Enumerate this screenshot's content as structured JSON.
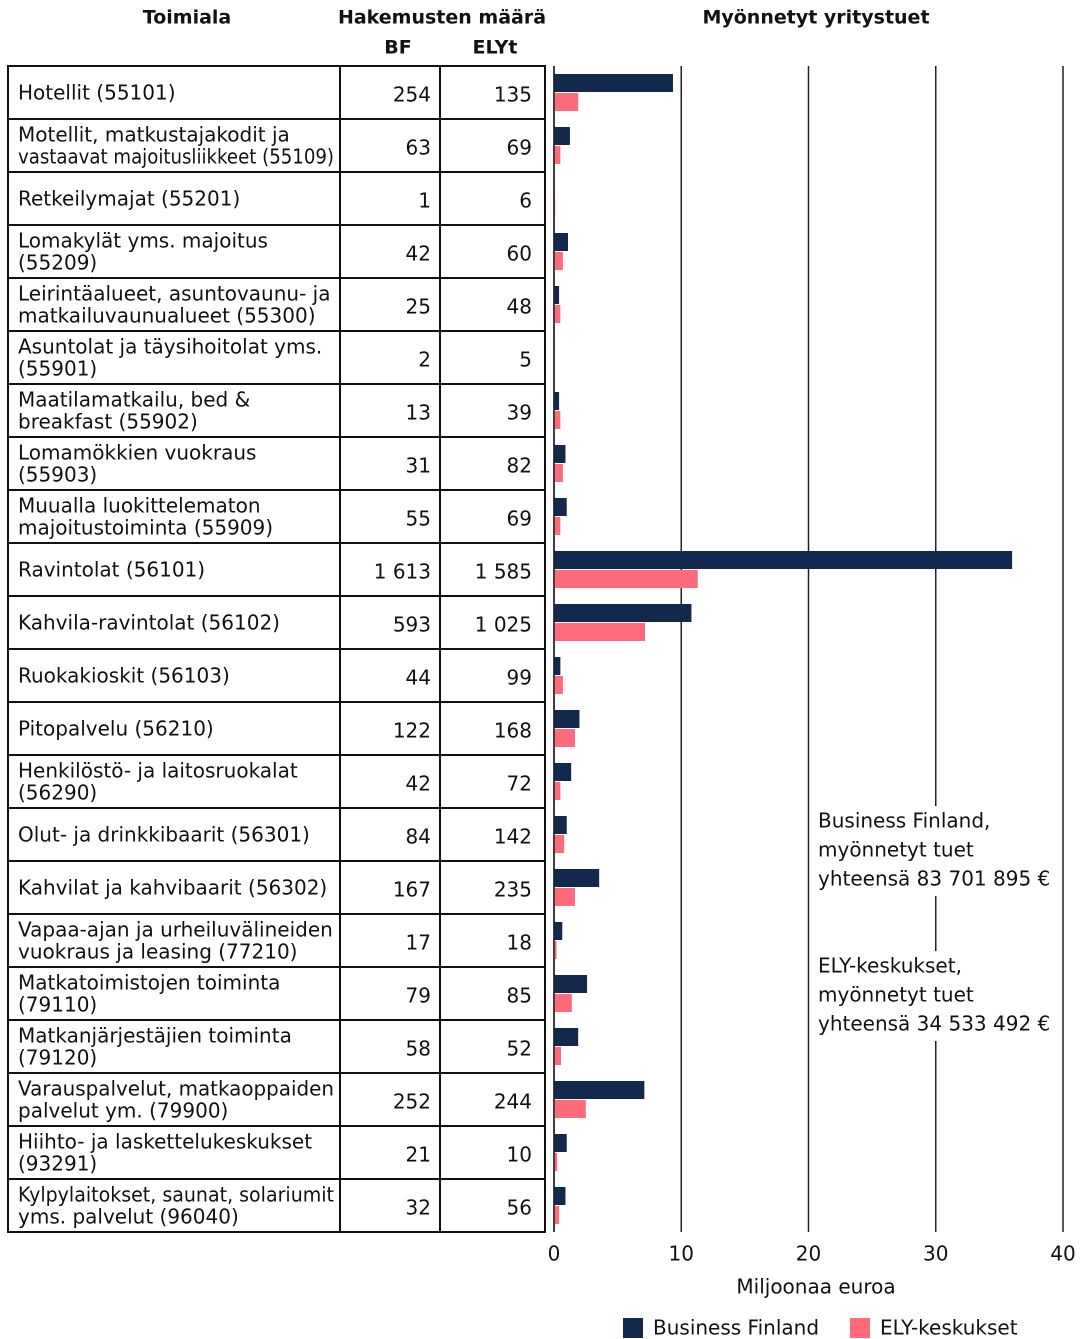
{
  "table": {
    "headers": {
      "toimiala": "Toimiala",
      "count": "Hakemusten määrä",
      "bf": "BF",
      "ely": "ELYt"
    },
    "rows": [
      {
        "name": [
          "Hotellit (55101)"
        ],
        "bf": "254",
        "ely": "135"
      },
      {
        "name": [
          "Motellit, matkustajakodit ja",
          "vastaavat majoitusliikkeet (55109)"
        ],
        "bf": "63",
        "ely": "69"
      },
      {
        "name": [
          "Retkeilymajat (55201)"
        ],
        "bf": "1",
        "ely": "6"
      },
      {
        "name": [
          "Lomakylät yms. majoitus",
          "(55209)"
        ],
        "bf": "42",
        "ely": "60"
      },
      {
        "name": [
          "Leirintäalueet, asuntovaunu- ja",
          "matkailuvaunualueet (55300)"
        ],
        "bf": "25",
        "ely": "48"
      },
      {
        "name": [
          "Asuntolat ja täysihoitolat yms.",
          "(55901)"
        ],
        "bf": "2",
        "ely": "5"
      },
      {
        "name": [
          "Maatilamatkailu, bed &",
          "breakfast (55902)"
        ],
        "bf": "13",
        "ely": "39"
      },
      {
        "name": [
          "Lomamökkien vuokraus",
          "(55903)"
        ],
        "bf": "31",
        "ely": "82"
      },
      {
        "name": [
          "Muualla luokittelematon",
          "majoitustoiminta (55909)"
        ],
        "bf": "55",
        "ely": "69"
      },
      {
        "name": [
          "Ravintolat (56101)"
        ],
        "bf": "1 613",
        "ely": "1 585"
      },
      {
        "name": [
          "Kahvila-ravintolat (56102)"
        ],
        "bf": "593",
        "ely": "1 025"
      },
      {
        "name": [
          "Ruokakioskit (56103)"
        ],
        "bf": "44",
        "ely": "99"
      },
      {
        "name": [
          "Pitopalvelu (56210)"
        ],
        "bf": "122",
        "ely": "168"
      },
      {
        "name": [
          "Henkilöstö- ja laitosruokalat",
          "(56290)"
        ],
        "bf": "42",
        "ely": "72"
      },
      {
        "name": [
          "Olut- ja drinkkibaarit (56301)"
        ],
        "bf": "84",
        "ely": "142"
      },
      {
        "name": [
          "Kahvilat ja kahvibaarit (56302)"
        ],
        "bf": "167",
        "ely": "235"
      },
      {
        "name": [
          "Vapaa-ajan ja urheiluvälineiden",
          "vuokraus ja leasing (77210)"
        ],
        "bf": "17",
        "ely": "18"
      },
      {
        "name": [
          "Matkatoimistojen toiminta",
          "(79110)"
        ],
        "bf": "79",
        "ely": "85"
      },
      {
        "name": [
          "Matkanjärjestäjien toiminta",
          "(79120)"
        ],
        "bf": "58",
        "ely": "52"
      },
      {
        "name": [
          "Varauspalvelut, matkaoppaiden",
          "palvelut ym. (79900)"
        ],
        "bf": "252",
        "ely": "244"
      },
      {
        "name": [
          "Hiihto- ja laskettelukeskukset",
          "(93291)"
        ],
        "bf": "21",
        "ely": "10"
      },
      {
        "name": [
          "Kylpylaitokset, saunat, solariumit",
          "yms. palvelut (96040)"
        ],
        "bf": "32",
        "ely": "56"
      }
    ]
  },
  "chart_data": {
    "type": "hbar",
    "title": "Myönnetyt yritystuet",
    "xlabel": "Miljoonaa euroa",
    "xlim": [
      0,
      40
    ],
    "xticks": [
      0,
      10,
      20,
      30,
      40
    ],
    "grid": true,
    "series": [
      {
        "name": "Business Finland",
        "color": "#12284c",
        "values": [
          9.35,
          1.25,
          0.05,
          1.1,
          0.4,
          0.05,
          0.4,
          0.9,
          1.0,
          36.0,
          10.8,
          0.5,
          2.0,
          1.35,
          1.0,
          3.55,
          0.65,
          2.6,
          1.9,
          7.1,
          1.0,
          0.9
        ]
      },
      {
        "name": "ELY-keskukset",
        "color": "#ff6b7a",
        "values": [
          1.9,
          0.5,
          0.1,
          0.7,
          0.5,
          0.05,
          0.5,
          0.7,
          0.5,
          11.3,
          7.15,
          0.7,
          1.65,
          0.5,
          0.8,
          1.65,
          0.2,
          1.4,
          0.55,
          2.5,
          0.25,
          0.4
        ]
      }
    ],
    "annotations": [
      {
        "lines": [
          "Business Finland,",
          "myönnetyt tuet",
          "yhteensä 83 701 895 €"
        ],
        "color": "#12284c"
      },
      {
        "lines": [
          "ELY-keskukset,",
          "myönnetyt tuet",
          "yhteensä 34 533 492 €"
        ],
        "color": "#ff6b7a"
      }
    ]
  }
}
